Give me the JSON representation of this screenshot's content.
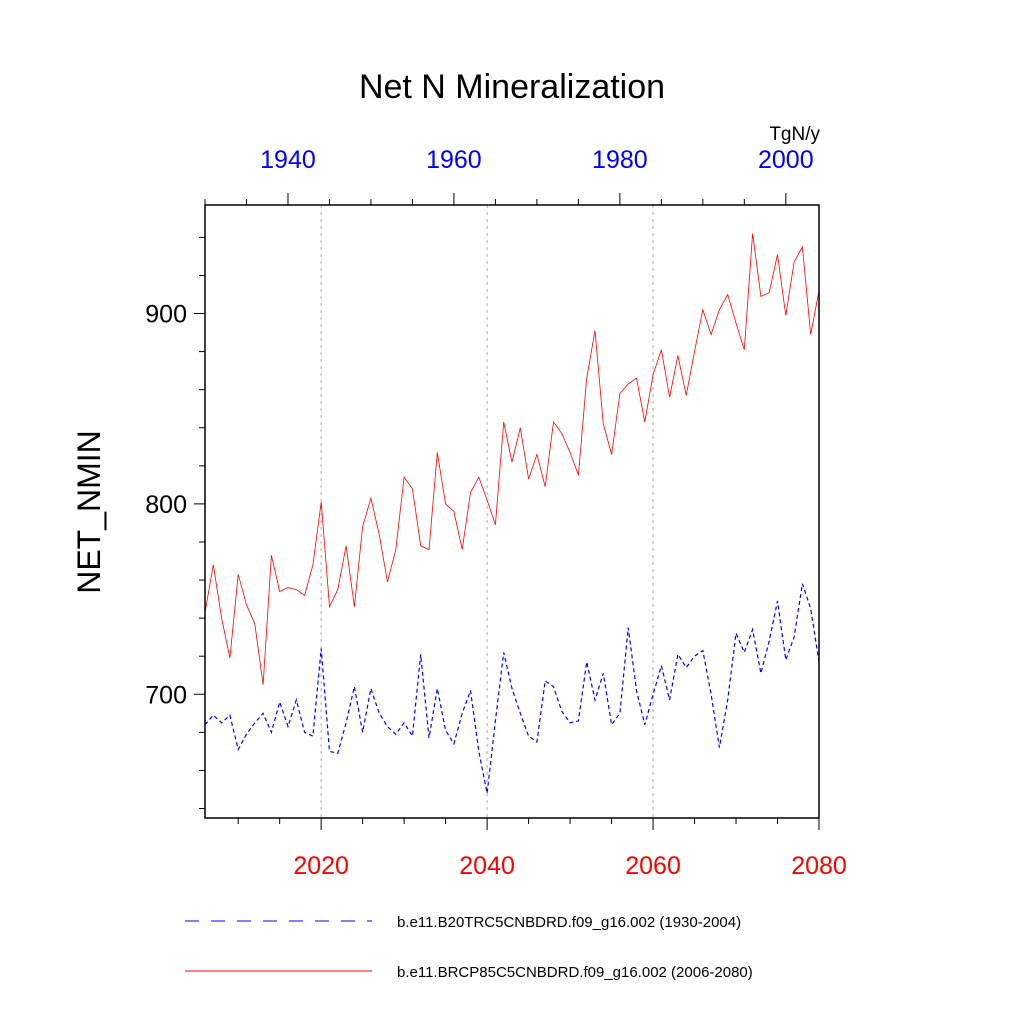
{
  "chart_data": {
    "type": "line",
    "title": "Net N Mineralization",
    "units": "TgN/y",
    "ylabel": "NET_NMIN",
    "ylim": [
      635,
      957
    ],
    "yticks": [
      700,
      800,
      900
    ],
    "x_bottom": {
      "range": [
        2006,
        2080
      ],
      "ticks": [
        2020,
        2040,
        2060,
        2080
      ],
      "color": "#ff0000"
    },
    "x_top": {
      "range": [
        1930,
        2004
      ],
      "ticks": [
        1940,
        1960,
        1980,
        2000
      ],
      "color": "#0000ff"
    },
    "grid_x": [
      2020,
      2040,
      2060
    ],
    "series": [
      {
        "name": "b.e11.B20TRC5CNBDRD.f09_g16.002 (1930-2004)",
        "color": "#0000ff",
        "dash": "dashed",
        "axis": "top",
        "x_start": 1930,
        "values": [
          684,
          689,
          685,
          689,
          671,
          679,
          685,
          690,
          680,
          696,
          683,
          697,
          680,
          678,
          724,
          670,
          669,
          685,
          704,
          680,
          703,
          690,
          683,
          679,
          685,
          678,
          721,
          677,
          703,
          681,
          674,
          690,
          702,
          670,
          648,
          686,
          722,
          703,
          690,
          678,
          675,
          707,
          704,
          691,
          685,
          686,
          717,
          697,
          711,
          684,
          690,
          735,
          702,
          684,
          700,
          715,
          697,
          721,
          714,
          720,
          723,
          700,
          672,
          697,
          732,
          722,
          734,
          711,
          728,
          749,
          718,
          730,
          758,
          745,
          717
        ]
      },
      {
        "name": "b.e11.BRCP85C5CNBDRD.f09_g16.002 (2006-2080)",
        "color": "#ff0000",
        "dash": "solid",
        "axis": "bottom",
        "x_start": 2006,
        "values": [
          743,
          768,
          740,
          719,
          763,
          747,
          737,
          705,
          773,
          754,
          756,
          755,
          752,
          768,
          801,
          746,
          755,
          778,
          746,
          788,
          803,
          784,
          759,
          776,
          814,
          808,
          778,
          776,
          827,
          800,
          796,
          776,
          806,
          814,
          802,
          789,
          843,
          822,
          840,
          813,
          826,
          809,
          843,
          837,
          827,
          815,
          866,
          891,
          842,
          826,
          858,
          863,
          866,
          843,
          868,
          881,
          856,
          878,
          857,
          880,
          902,
          889,
          902,
          910,
          895,
          881,
          942,
          909,
          911,
          931,
          899,
          927,
          935,
          889,
          912
        ]
      }
    ]
  }
}
